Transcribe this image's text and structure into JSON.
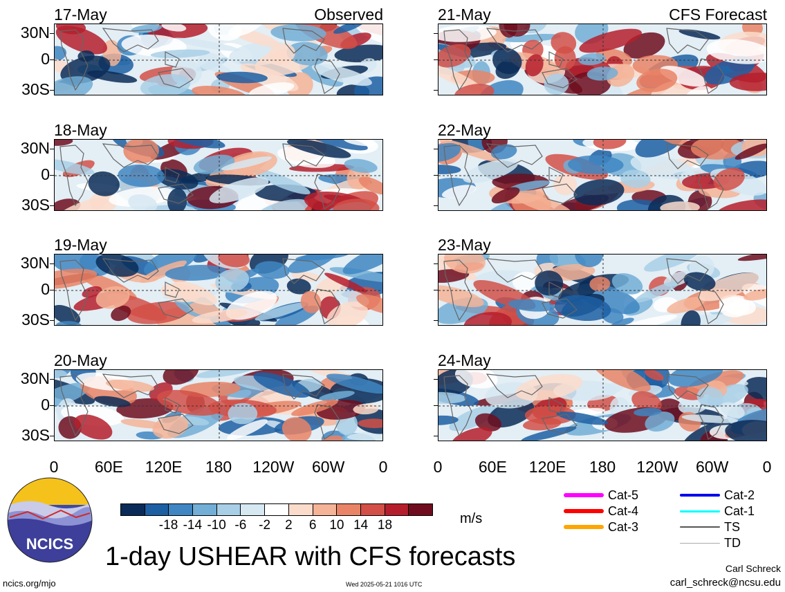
{
  "columns": [
    {
      "heading": "Observed",
      "panels": [
        {
          "date": "17-May",
          "seed": 17
        },
        {
          "date": "18-May",
          "seed": 18
        },
        {
          "date": "19-May",
          "seed": 19
        },
        {
          "date": "20-May",
          "seed": 20
        }
      ]
    },
    {
      "heading": "CFS Forecast",
      "panels": [
        {
          "date": "21-May",
          "seed": 21
        },
        {
          "date": "22-May",
          "seed": 22
        },
        {
          "date": "23-May",
          "seed": 23
        },
        {
          "date": "24-May",
          "seed": 24
        }
      ]
    }
  ],
  "lat_labels": [
    "30N",
    "0",
    "30S"
  ],
  "lon_labels": [
    "0",
    "60E",
    "120E",
    "180",
    "120W",
    "60W",
    "0"
  ],
  "colorbar": {
    "colors": [
      "#0a2b57",
      "#1d5fa3",
      "#3f86c2",
      "#72aed6",
      "#a9cfe6",
      "#d6e8f2",
      "#ffffff",
      "#fbdccb",
      "#f5b397",
      "#e98466",
      "#d25048",
      "#b51f2d",
      "#6f0d1f"
    ],
    "labels": [
      "-18",
      "-14",
      "-10",
      "-6",
      "-2",
      "2",
      "6",
      "10",
      "14",
      "18"
    ],
    "units": "m/s"
  },
  "legend": [
    {
      "label": "Cat-5",
      "color": "#ff00ff",
      "weight": 6
    },
    {
      "label": "Cat-4",
      "color": "#ff0000",
      "weight": 6
    },
    {
      "label": "Cat-3",
      "color": "#ffa500",
      "weight": 6
    },
    {
      "label": "Cat-2",
      "color": "#0000ee",
      "weight": 4
    },
    {
      "label": "Cat-1",
      "color": "#00ffff",
      "weight": 3
    },
    {
      "label": "TS",
      "color": "#555555",
      "weight": 2
    },
    {
      "label": "TD",
      "color": "#aaaaaa",
      "weight": 1
    }
  ],
  "logo_text": "NCICS",
  "main_title": "1-day USHEAR with CFS forecasts",
  "footer": {
    "url": "ncics.org/mjo",
    "timestamp": "Wed 2025-05-21 1016 UTC",
    "author": "Carl Schreck",
    "email": "carl_schreck@ncsu.edu"
  }
}
